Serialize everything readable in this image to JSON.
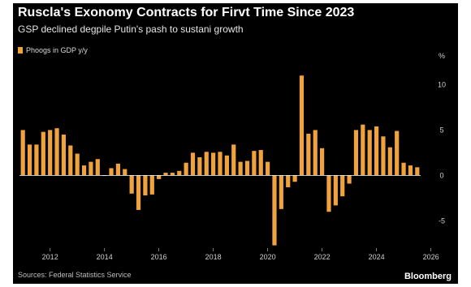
{
  "header": {
    "title": "Ruscla's Exonomy Contracts for Firvt Time Since 2023",
    "subtitle": "GSP declined degpile Putin's pash to sustani growth"
  },
  "legend": {
    "label": "Phoogs in GDP y/y"
  },
  "footer": {
    "source": "Sources: Federal Statistics Service",
    "brand": "Bloomberg"
  },
  "colors": {
    "bar": "#f0a23c",
    "background": "#000000",
    "zero_line": "#ffffff"
  },
  "chart_data": {
    "type": "bar",
    "title": "Ruscla's Exonomy Contracts for Firvt Time Since 2023",
    "xlabel": "",
    "ylabel": "%",
    "y_unit_label": "%",
    "ylim": [
      -8,
      12
    ],
    "y_ticks": [
      10,
      5,
      0,
      -5
    ],
    "x_ticks": [
      "2012",
      "2014",
      "2016",
      "2018",
      "2020",
      "2022",
      "2024",
      "2026"
    ],
    "grid": false,
    "legend_position": "top-left",
    "categories": [
      "2011 Q1",
      "2011 Q2",
      "2011 Q3",
      "2011 Q4",
      "2012 Q1",
      "2012 Q2",
      "2012 Q3",
      "2012 Q4",
      "2013 Q1",
      "2013 Q2",
      "2013 Q3",
      "2013 Q4",
      "2014 Q1",
      "2014 Q2",
      "2014 Q3",
      "2014 Q4",
      "2015 Q1",
      "2015 Q2",
      "2015 Q3",
      "2015 Q4",
      "2016 Q1",
      "2016 Q2",
      "2016 Q3",
      "2016 Q4",
      "2017 Q1",
      "2017 Q2",
      "2017 Q3",
      "2017 Q4",
      "2018 Q1",
      "2018 Q2",
      "2018 Q3",
      "2018 Q4",
      "2019 Q1",
      "2019 Q2",
      "2019 Q3",
      "2019 Q4",
      "2020 Q1",
      "2020 Q2",
      "2020 Q3",
      "2020 Q4",
      "2021 Q1",
      "2021 Q2",
      "2021 Q3",
      "2021 Q4",
      "2022 Q1",
      "2022 Q2",
      "2022 Q3",
      "2022 Q4",
      "2023 Q1",
      "2023 Q2",
      "2023 Q3",
      "2023 Q4",
      "2024 Q1",
      "2024 Q2",
      "2024 Q3",
      "2024 Q4",
      "2025 Q1",
      "2025 Q2",
      "2025 Q3"
    ],
    "series": [
      {
        "values": [
          5.0,
          3.4,
          3.4,
          4.8,
          5.0,
          5.2,
          4.5,
          3.3,
          2.4,
          1.1,
          1.5,
          1.8,
          0.0,
          0.8,
          1.3,
          0.7,
          -2.0,
          -3.8,
          -2.2,
          -2.1,
          -0.4,
          0.3,
          0.3,
          0.5,
          1.4,
          2.5,
          2.0,
          2.6,
          2.5,
          2.6,
          2.2,
          3.4,
          1.5,
          1.6,
          2.7,
          2.8,
          1.5,
          -7.7,
          -3.7,
          -1.3,
          -0.7,
          11.0,
          4.6,
          5.0,
          3.0,
          -4.0,
          -3.3,
          -2.3,
          -0.9,
          5.0,
          5.6,
          5.0,
          5.4,
          4.3,
          3.1,
          4.9,
          1.4,
          1.1,
          0.9
        ]
      }
    ]
  }
}
